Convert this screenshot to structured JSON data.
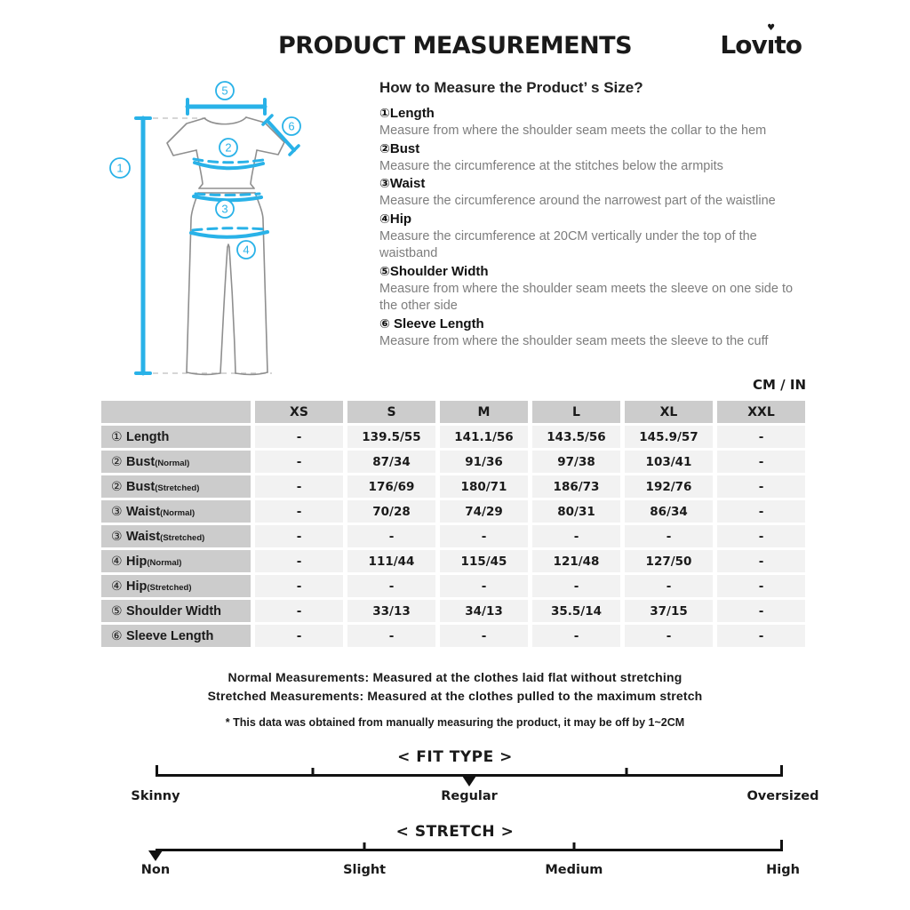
{
  "colors": {
    "accent": "#29b2e8",
    "header_gray": "#cccccc",
    "cell_gray": "#f2f2f2",
    "muted": "#7d7d7d",
    "outline": "#8f8f8f"
  },
  "header": {
    "title": "PRODUCT MEASUREMENTS",
    "brand_pre": "Lov",
    "brand_i": "ı",
    "brand_post": "to",
    "heart_glyph": "♥"
  },
  "diagram": {
    "markers": [
      "1",
      "2",
      "3",
      "4",
      "5",
      "6"
    ]
  },
  "how_to": {
    "heading": "How to Measure the Product’ s Size?",
    "items": [
      {
        "num": "①",
        "label": "Length",
        "desc": "Measure from where the shoulder seam meets the collar to the hem"
      },
      {
        "num": "②",
        "label": "Bust",
        "desc": "Measure the circumference at the stitches below the armpits"
      },
      {
        "num": "③",
        "label": "Waist",
        "desc": "Measure the circumference around the narrowest part of the waistline"
      },
      {
        "num": "④",
        "label": "Hip",
        "desc": "Measure the circumference at 20CM vertically under the top of the waistband"
      },
      {
        "num": "⑤",
        "label": "Shoulder Width",
        "desc": "Measure from where the shoulder seam meets the sleeve on one side to the other side"
      },
      {
        "num": "⑥",
        "label": " Sleeve Length",
        "desc": "Measure from where the shoulder seam meets the sleeve to the cuff"
      }
    ]
  },
  "units_label": "CM / IN",
  "table": {
    "columns": [
      "",
      "XS",
      "S",
      "M",
      "L",
      "XL",
      "XXL"
    ],
    "rows": [
      {
        "num": "①",
        "name": "Length",
        "sub": "",
        "values": [
          "-",
          "139.5/55",
          "141.1/56",
          "143.5/56",
          "145.9/57",
          "-"
        ]
      },
      {
        "num": "②",
        "name": "Bust",
        "sub": "(Normal)",
        "values": [
          "-",
          "87/34",
          "91/36",
          "97/38",
          "103/41",
          "-"
        ]
      },
      {
        "num": "②",
        "name": "Bust",
        "sub": "(Stretched)",
        "values": [
          "-",
          "176/69",
          "180/71",
          "186/73",
          "192/76",
          "-"
        ]
      },
      {
        "num": "③",
        "name": "Waist",
        "sub": "(Normal)",
        "values": [
          "-",
          "70/28",
          "74/29",
          "80/31",
          "86/34",
          "-"
        ]
      },
      {
        "num": "③",
        "name": "Waist",
        "sub": "(Stretched)",
        "values": [
          "-",
          "-",
          "-",
          "-",
          "-",
          "-"
        ]
      },
      {
        "num": "④",
        "name": "Hip",
        "sub": "(Normal)",
        "values": [
          "-",
          "111/44",
          "115/45",
          "121/48",
          "127/50",
          "-"
        ]
      },
      {
        "num": "④",
        "name": "Hip",
        "sub": "(Stretched)",
        "values": [
          "-",
          "-",
          "-",
          "-",
          "-",
          "-"
        ]
      },
      {
        "num": "⑤",
        "name": "Shoulder Width",
        "sub": "",
        "values": [
          "-",
          "33/13",
          "34/13",
          "35.5/14",
          "37/15",
          "-"
        ]
      },
      {
        "num": "⑥",
        "name": "Sleeve Length",
        "sub": "",
        "values": [
          "-",
          "-",
          "-",
          "-",
          "-",
          "-"
        ]
      }
    ]
  },
  "notes": {
    "line1": "Normal Measurements: Measured at the clothes laid flat without stretching",
    "line2": "Stretched  Measurements: Measured at the clothes pulled to the maximum stretch",
    "disclaimer": "* This data was obtained from manually measuring the product, it may be off by 1~2CM"
  },
  "fit_type": {
    "title": "< FIT TYPE >",
    "selected": "Regular",
    "marker_percent": 50,
    "ticks": [
      25,
      75
    ],
    "labels": [
      {
        "text": "Skinny",
        "percent": 0
      },
      {
        "text": "Regular",
        "percent": 50
      },
      {
        "text": "Oversized",
        "percent": 100
      }
    ]
  },
  "stretch": {
    "title": "< STRETCH >",
    "selected": "Non",
    "marker_percent": 0,
    "ticks": [
      33.3,
      66.7
    ],
    "labels": [
      {
        "text": "Non",
        "percent": 0
      },
      {
        "text": "Slight",
        "percent": 33.3
      },
      {
        "text": "Medium",
        "percent": 66.7
      },
      {
        "text": "High",
        "percent": 100
      }
    ]
  }
}
